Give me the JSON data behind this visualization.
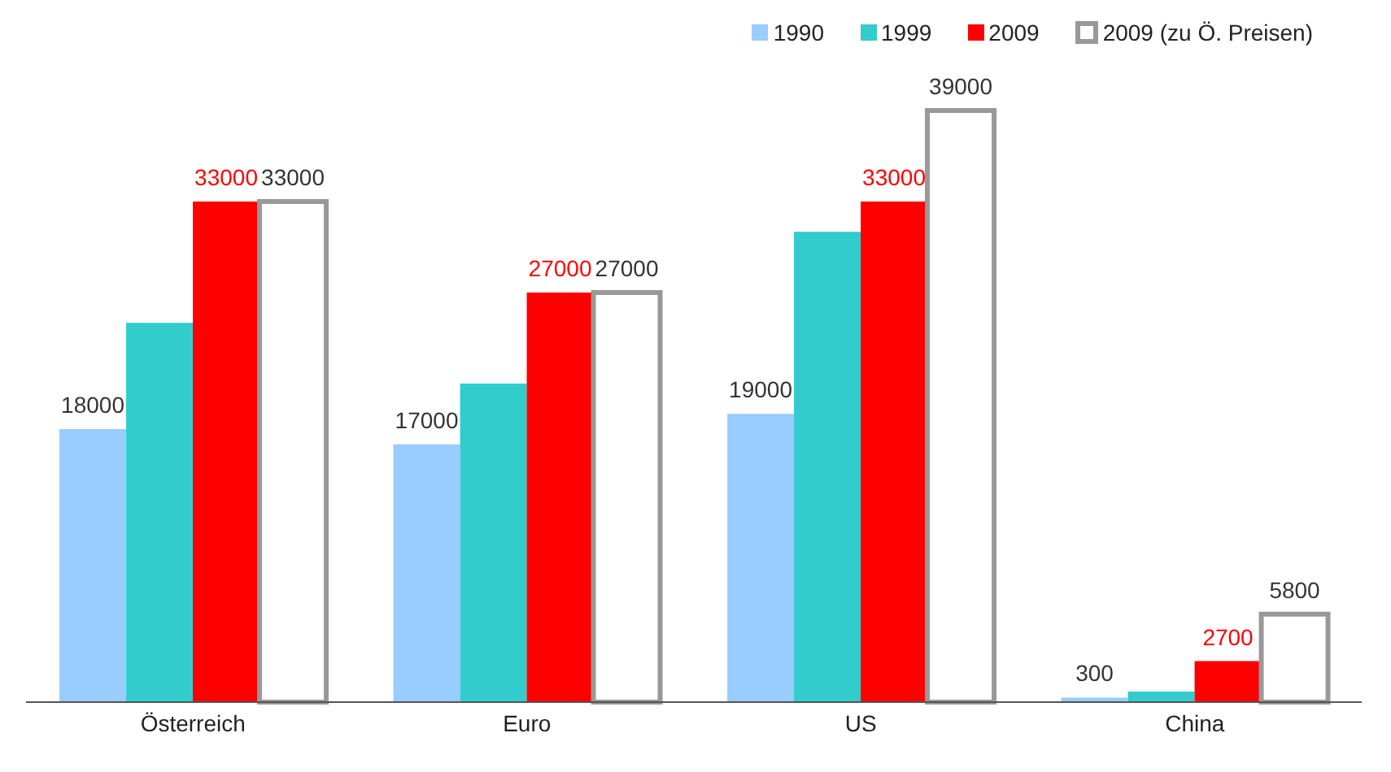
{
  "chart_data": {
    "type": "bar",
    "categories": [
      "Österreich",
      "Euro",
      "US",
      "China"
    ],
    "series": [
      {
        "name": "1990",
        "color": "#99ccff",
        "values": [
          18000,
          17000,
          19000,
          300
        ],
        "value_labels": [
          "18000",
          "17000",
          "19000",
          "300"
        ]
      },
      {
        "name": "1999",
        "color": "#33cccc",
        "values": [
          25000,
          21000,
          31000,
          700
        ]
      },
      {
        "name": "2009",
        "color": "#ff0000",
        "values": [
          33000,
          27000,
          33000,
          2700
        ],
        "value_labels": [
          "33000",
          "27000",
          "33000",
          "2700"
        ]
      },
      {
        "name": "2009 (zu Ö. Preisen)",
        "color": "#ffffff",
        "values": [
          33000,
          27000,
          39000,
          5800
        ],
        "value_labels": [
          "33000",
          "27000",
          "39000",
          "5800"
        ]
      }
    ],
    "legend": "top"
  }
}
